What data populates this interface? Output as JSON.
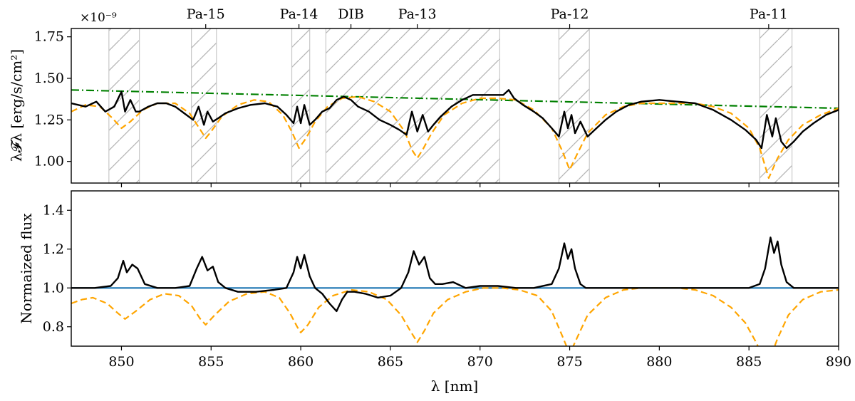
{
  "chart_data": [
    {
      "type": "line",
      "panel": "top",
      "ylabel": "λ𝓕λ [erg/s/cm²]",
      "offset_text": "×10⁻⁹",
      "xlim": [
        847.2,
        890
      ],
      "ylim": [
        0.87,
        1.8
      ],
      "x_ticks": [
        850,
        855,
        860,
        865,
        870,
        875,
        880,
        885,
        890
      ],
      "y_ticks": [
        1.0,
        1.25,
        1.5,
        1.75
      ],
      "y_tick_labels": [
        "1.00",
        "1.25",
        "1.50",
        "1.75"
      ],
      "grid": false,
      "line_labels": [
        {
          "label": "Pa-15",
          "x": 854.7
        },
        {
          "label": "Pa-14",
          "x": 859.9
        },
        {
          "label": "DIB",
          "x": 862.8
        },
        {
          "label": "Pa-13",
          "x": 866.5
        },
        {
          "label": "Pa-12",
          "x": 875.0
        },
        {
          "label": "Pa-11",
          "x": 886.1
        }
      ],
      "masked_regions": [
        [
          849.3,
          851.0
        ],
        [
          853.9,
          855.3
        ],
        [
          859.5,
          860.5
        ],
        [
          861.4,
          871.1
        ],
        [
          874.4,
          876.1
        ],
        [
          885.6,
          887.4
        ]
      ],
      "series": [
        {
          "style": "solid",
          "color": "#000000",
          "x": [
            847.2,
            848.0,
            848.6,
            849.1,
            849.6,
            850.0,
            850.2,
            850.5,
            850.8,
            851.0,
            851.5,
            852.0,
            852.5,
            853.0,
            853.5,
            854.0,
            854.3,
            854.6,
            854.8,
            855.1,
            855.4,
            855.8,
            856.5,
            857.2,
            858.0,
            858.7,
            859.2,
            859.6,
            859.8,
            860.0,
            860.2,
            860.5,
            860.8,
            861.2,
            861.6,
            862.0,
            862.4,
            862.8,
            863.2,
            863.8,
            864.4,
            865.0,
            865.5,
            865.9,
            866.2,
            866.5,
            866.8,
            867.1,
            867.4,
            867.8,
            868.4,
            869.0,
            869.6,
            870.2,
            870.8,
            871.3,
            871.6,
            871.9,
            872.4,
            873.0,
            873.5,
            874.0,
            874.4,
            874.7,
            874.9,
            875.1,
            875.3,
            875.6,
            876.0,
            876.4,
            877.0,
            877.6,
            878.3,
            879.0,
            880.0,
            881.0,
            882.0,
            883.0,
            884.0,
            884.8,
            885.4,
            885.7,
            886.0,
            886.3,
            886.5,
            886.8,
            887.1,
            887.5,
            888.0,
            888.6,
            889.3,
            890.0
          ],
          "values": [
            1.35,
            1.33,
            1.36,
            1.3,
            1.33,
            1.42,
            1.3,
            1.37,
            1.3,
            1.3,
            1.33,
            1.35,
            1.35,
            1.33,
            1.29,
            1.25,
            1.33,
            1.22,
            1.3,
            1.24,
            1.26,
            1.29,
            1.32,
            1.34,
            1.35,
            1.33,
            1.28,
            1.23,
            1.33,
            1.23,
            1.34,
            1.22,
            1.25,
            1.3,
            1.32,
            1.37,
            1.39,
            1.37,
            1.33,
            1.3,
            1.25,
            1.22,
            1.19,
            1.16,
            1.3,
            1.18,
            1.28,
            1.18,
            1.22,
            1.27,
            1.33,
            1.37,
            1.4,
            1.4,
            1.4,
            1.4,
            1.43,
            1.38,
            1.34,
            1.3,
            1.26,
            1.2,
            1.15,
            1.3,
            1.2,
            1.28,
            1.17,
            1.24,
            1.15,
            1.19,
            1.25,
            1.3,
            1.34,
            1.36,
            1.37,
            1.36,
            1.35,
            1.31,
            1.25,
            1.19,
            1.13,
            1.08,
            1.28,
            1.15,
            1.26,
            1.12,
            1.08,
            1.12,
            1.18,
            1.23,
            1.28,
            1.31
          ]
        },
        {
          "style": "dashed",
          "color": "#FFA500",
          "x": [
            847.2,
            848.0,
            848.8,
            849.5,
            850.0,
            850.5,
            851.2,
            852.0,
            853.0,
            853.8,
            854.4,
            854.7,
            855.0,
            855.6,
            856.5,
            857.4,
            858.2,
            859.0,
            859.5,
            859.9,
            860.3,
            860.8,
            861.5,
            862.3,
            863.2,
            864.1,
            865.0,
            865.8,
            866.2,
            866.5,
            866.8,
            867.3,
            868.0,
            869.0,
            870.0,
            871.0,
            872.0,
            873.0,
            874.0,
            874.6,
            875.0,
            875.4,
            876.0,
            877.0,
            878.0,
            879.0,
            880.0,
            881.0,
            882.0,
            883.0,
            884.0,
            885.0,
            885.6,
            886.1,
            886.6,
            887.2,
            888.0,
            889.0,
            890.0
          ],
          "values": [
            1.3,
            1.34,
            1.33,
            1.26,
            1.2,
            1.24,
            1.31,
            1.35,
            1.35,
            1.29,
            1.19,
            1.14,
            1.18,
            1.27,
            1.34,
            1.37,
            1.36,
            1.28,
            1.18,
            1.08,
            1.14,
            1.24,
            1.33,
            1.38,
            1.39,
            1.36,
            1.3,
            1.18,
            1.07,
            1.02,
            1.07,
            1.17,
            1.28,
            1.35,
            1.38,
            1.38,
            1.37,
            1.31,
            1.2,
            1.06,
            0.95,
            1.04,
            1.17,
            1.28,
            1.33,
            1.35,
            1.35,
            1.35,
            1.35,
            1.33,
            1.29,
            1.2,
            1.08,
            0.9,
            1.02,
            1.13,
            1.22,
            1.28,
            1.32
          ]
        },
        {
          "style": "dashdot",
          "color": "#008000",
          "x": [
            847.2,
            890.0
          ],
          "values": [
            1.43,
            1.32
          ]
        }
      ]
    },
    {
      "type": "line",
      "panel": "bottom",
      "xlabel": "λ [nm]",
      "ylabel": "Normaized flux",
      "xlim": [
        847.2,
        890
      ],
      "ylim": [
        0.7,
        1.5
      ],
      "x_ticks": [
        850,
        855,
        860,
        865,
        870,
        875,
        880,
        885,
        890
      ],
      "x_tick_labels": [
        "850",
        "855",
        "860",
        "865",
        "870",
        "875",
        "880",
        "885",
        "890"
      ],
      "y_ticks": [
        0.8,
        1.0,
        1.2,
        1.4
      ],
      "y_tick_labels": [
        "0.8",
        "1.0",
        "1.2",
        "1.4"
      ],
      "grid": false,
      "series": [
        {
          "style": "solid",
          "color": "#000000",
          "x": [
            847.2,
            848.5,
            849.4,
            849.8,
            850.1,
            850.3,
            850.6,
            850.9,
            851.3,
            852.0,
            853.0,
            853.8,
            854.2,
            854.5,
            854.8,
            855.1,
            855.4,
            855.8,
            856.5,
            857.5,
            858.5,
            859.2,
            859.6,
            859.8,
            860.0,
            860.2,
            860.5,
            860.8,
            861.2,
            861.6,
            862.0,
            862.3,
            862.6,
            863.0,
            863.6,
            864.3,
            865.0,
            865.6,
            866.0,
            866.3,
            866.6,
            866.9,
            867.2,
            867.5,
            867.9,
            868.5,
            869.2,
            870.0,
            871.0,
            872.0,
            873.0,
            874.0,
            874.4,
            874.7,
            874.9,
            875.1,
            875.3,
            875.6,
            875.9,
            876.3,
            877.0,
            878.0,
            879.0,
            880.0,
            881.0,
            882.0,
            883.0,
            884.0,
            885.0,
            885.6,
            885.9,
            886.2,
            886.4,
            886.6,
            886.8,
            887.1,
            887.5,
            888.0,
            889.0,
            890.0
          ],
          "values": [
            1.0,
            1.0,
            1.01,
            1.05,
            1.14,
            1.08,
            1.12,
            1.1,
            1.02,
            1.0,
            1.0,
            1.01,
            1.1,
            1.16,
            1.09,
            1.11,
            1.03,
            1.0,
            0.98,
            0.98,
            0.99,
            1.0,
            1.08,
            1.16,
            1.1,
            1.17,
            1.06,
            1.0,
            0.97,
            0.92,
            0.88,
            0.94,
            0.98,
            0.98,
            0.97,
            0.95,
            0.96,
            1.0,
            1.08,
            1.19,
            1.12,
            1.16,
            1.05,
            1.02,
            1.02,
            1.03,
            1.0,
            1.01,
            1.01,
            1.0,
            1.0,
            1.02,
            1.1,
            1.23,
            1.15,
            1.2,
            1.1,
            1.02,
            1.0,
            1.0,
            1.0,
            1.0,
            1.0,
            1.0,
            1.0,
            1.0,
            1.0,
            1.0,
            1.0,
            1.02,
            1.1,
            1.26,
            1.18,
            1.24,
            1.12,
            1.03,
            1.0,
            1.0,
            1.0,
            1.0
          ]
        },
        {
          "style": "dashed",
          "color": "#FFA500",
          "x": [
            847.2,
            847.8,
            848.4,
            849.2,
            849.8,
            850.2,
            850.8,
            851.6,
            852.4,
            853.2,
            853.9,
            854.4,
            854.7,
            855.2,
            856.0,
            857.0,
            858.0,
            858.8,
            859.4,
            859.8,
            860.0,
            860.4,
            861.0,
            861.8,
            862.8,
            863.8,
            864.8,
            865.6,
            866.1,
            866.5,
            866.9,
            867.4,
            868.2,
            869.2,
            870.2,
            871.2,
            872.2,
            873.2,
            874.0,
            874.6,
            875.0,
            875.5,
            876.0,
            877.0,
            878.0,
            879.0,
            880.0,
            881.0,
            882.0,
            883.0,
            884.0,
            884.8,
            885.4,
            885.9,
            886.1,
            886.6,
            887.2,
            888.0,
            889.0,
            890.0
          ],
          "values": [
            0.92,
            0.94,
            0.95,
            0.92,
            0.87,
            0.84,
            0.88,
            0.94,
            0.97,
            0.96,
            0.91,
            0.84,
            0.81,
            0.86,
            0.93,
            0.97,
            0.98,
            0.95,
            0.87,
            0.8,
            0.77,
            0.81,
            0.9,
            0.96,
            0.99,
            0.98,
            0.94,
            0.86,
            0.78,
            0.72,
            0.78,
            0.87,
            0.94,
            0.98,
            1.0,
            1.0,
            0.99,
            0.96,
            0.88,
            0.75,
            0.66,
            0.76,
            0.86,
            0.95,
            0.99,
            1.0,
            1.0,
            1.0,
            0.99,
            0.96,
            0.9,
            0.82,
            0.72,
            0.62,
            0.62,
            0.74,
            0.86,
            0.94,
            0.98,
            0.99
          ]
        },
        {
          "style": "solid",
          "color": "#1F77B4",
          "x": [
            847.2,
            890.0
          ],
          "values": [
            1.0,
            1.0
          ]
        }
      ]
    }
  ]
}
